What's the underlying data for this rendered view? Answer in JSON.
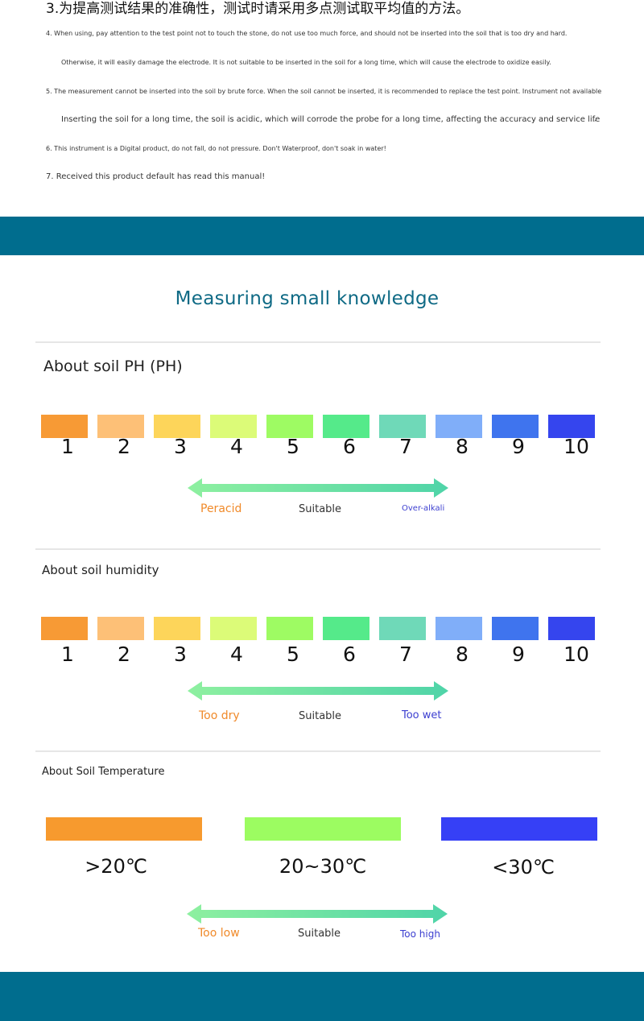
{
  "instructions": {
    "heading": "3.为提高测试结果的准确性，测试时请采用多点测试取平均值的方法。",
    "notes": [
      "4. When using, pay attention to the test point not to touch the stone, do not use too much force, and should not be inserted into the soil that is too dry and hard.",
      "Otherwise, it will easily damage the electrode. It is not suitable to be inserted in the soil for a long time, which will cause the electrode to oxidize easily.",
      "5. The measurement cannot be inserted into the soil by brute force. When the soil cannot be inserted, it is recommended to replace the test point. Instrument not available",
      "Inserting the soil for a long time, the soil is acidic, which will corrode the probe for a long time, affecting the accuracy and service life",
      "6. This instrument is a Digital product, do not fall, do not pressure. Don't Waterproof, don't soak in water!",
      "7. Received this product default has read this manual!"
    ],
    "stray_comma": ","
  },
  "knowledge": {
    "title": "Measuring small knowledge"
  },
  "scale_colors": [
    "#f79a35",
    "#fdc077",
    "#fdd55a",
    "#dcfb78",
    "#9efb63",
    "#55ea8a",
    "#6fd9b8",
    "#80aef9",
    "#3f74ee",
    "#3545ee"
  ],
  "ph": {
    "title": "About soil PH (PH)",
    "numbers": [
      "1",
      "2",
      "3",
      "4",
      "5",
      "6",
      "7",
      "8",
      "9",
      "10"
    ],
    "left_label": "Peracid",
    "mid_label": "Suitable",
    "right_label": "Over-alkali"
  },
  "humidity": {
    "title": "About soil humidity",
    "numbers": [
      "1",
      "2",
      "3",
      "4",
      "5",
      "6",
      "7",
      "8",
      "9",
      "10"
    ],
    "left_label": "Too dry",
    "mid_label": "Suitable",
    "right_label": "Too wet"
  },
  "temperature": {
    "title": "About Soil Temperature",
    "ranges": [
      {
        "label": ">20℃",
        "color": "#f79a2e"
      },
      {
        "label": "20~30℃",
        "color": "#9cfc61"
      },
      {
        "label": "<30℃",
        "color": "#3640f6"
      }
    ],
    "left_label": "Too low",
    "mid_label": "Suitable",
    "right_label": "Too high"
  },
  "colors": {
    "band": "#006d8e",
    "title": "#0f6a85",
    "low_label": "#f08a2a",
    "high_label": "#3c3fd0",
    "arrow_left": "#8ef0a0",
    "arrow_right": "#4fd4a8"
  }
}
